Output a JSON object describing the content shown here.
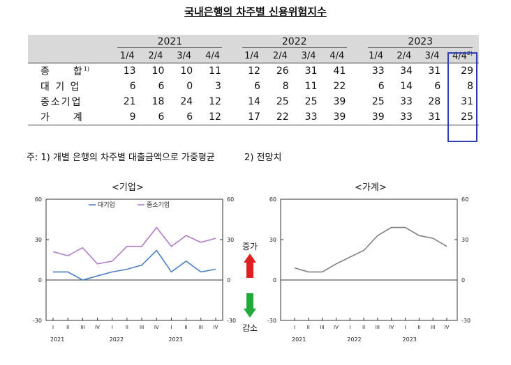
{
  "title": "국내은행의 차주별 신용위험지수",
  "table": {
    "years": [
      "2021",
      "2022",
      "2023"
    ],
    "quarters": [
      "1/4",
      "2/4",
      "3/4",
      "4/4",
      "1/4",
      "2/4",
      "3/4",
      "4/4",
      "1/4",
      "2/4",
      "3/4",
      "4/4"
    ],
    "forecast_quarter": "4/4",
    "forecast_superscript": "2)",
    "rows": [
      {
        "label": "종　　합",
        "sup": "1)",
        "values": [
          "13",
          "10",
          "10",
          "11",
          "12",
          "26",
          "31",
          "41",
          "33",
          "34",
          "31",
          "29"
        ]
      },
      {
        "label": "대 기 업",
        "sup": "",
        "values": [
          "6",
          "6",
          "0",
          "3",
          "6",
          "8",
          "11",
          "22",
          "6",
          "14",
          "6",
          "8"
        ]
      },
      {
        "label": "중소기업",
        "sup": "",
        "values": [
          "21",
          "18",
          "24",
          "12",
          "14",
          "25",
          "25",
          "39",
          "25",
          "33",
          "28",
          "31"
        ]
      },
      {
        "label": "가　　계",
        "sup": "",
        "values": [
          "9",
          "6",
          "6",
          "12",
          "17",
          "22",
          "33",
          "39",
          "39",
          "33",
          "31",
          "25"
        ]
      }
    ]
  },
  "footnote": {
    "prefix": "주: 1) 개별 은행의 차주별 대출금액으로 가중평균",
    "note2": "2) 전망치"
  },
  "arrows": {
    "up_label": "증가",
    "down_label": "감소",
    "up_color": "#e02020",
    "down_color": "#1faa3a"
  },
  "chart_data": [
    {
      "type": "line",
      "title": "<기업>",
      "categories": [
        "I",
        "II",
        "III",
        "IV",
        "I",
        "II",
        "III",
        "IV",
        "I",
        "II",
        "III",
        "IV"
      ],
      "year_labels": [
        "2021",
        "2022",
        "2023"
      ],
      "ylim": [
        -30,
        60
      ],
      "yticks": [
        "60",
        "30",
        "0",
        "-30"
      ],
      "legend_position": "top",
      "series": [
        {
          "name": "대기업",
          "color": "#4a7fc1",
          "values": [
            6,
            6,
            0,
            3,
            6,
            8,
            11,
            22,
            6,
            14,
            6,
            8
          ]
        },
        {
          "name": "중소기업",
          "color": "#b07cc6",
          "values": [
            21,
            18,
            24,
            12,
            14,
            25,
            25,
            39,
            25,
            33,
            28,
            31
          ]
        }
      ]
    },
    {
      "type": "line",
      "title": "<가계>",
      "categories": [
        "I",
        "II",
        "III",
        "IV",
        "I",
        "II",
        "III",
        "IV",
        "I",
        "II",
        "III",
        "IV"
      ],
      "year_labels": [
        "2021",
        "2022",
        "2023"
      ],
      "ylim": [
        -30,
        60
      ],
      "yticks": [
        "60",
        "30",
        "0",
        "-30"
      ],
      "series": [
        {
          "color": "#808080",
          "values": [
            9,
            6,
            6,
            12,
            17,
            22,
            33,
            39,
            39,
            33,
            31,
            25
          ]
        }
      ]
    }
  ]
}
